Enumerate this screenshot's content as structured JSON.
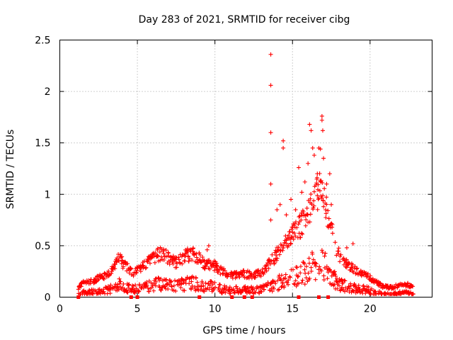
{
  "chart_data": {
    "type": "scatter",
    "title": "Day 283 of 2021, SRMTID for receiver cibg",
    "xlabel": "GPS time / hours",
    "ylabel": "SRMTID / TECUs",
    "xlim": [
      0,
      24
    ],
    "ylim": [
      0,
      2.5
    ],
    "xticks": [
      0,
      5,
      10,
      15,
      20
    ],
    "yticks": [
      0,
      0.5,
      1,
      1.5,
      2,
      2.5
    ],
    "xtick_labels": [
      "0",
      "5",
      "10",
      "15",
      "20"
    ],
    "ytick_labels": [
      "0",
      "0.5",
      "1",
      "1.5",
      "2",
      "2.5"
    ],
    "grid": true,
    "series": [
      {
        "name": "SRMTID",
        "marker": "plus",
        "color": "#ff0000",
        "baseline": [
          [
            1.2,
            0.06
          ],
          [
            1.5,
            0.09
          ],
          [
            2.0,
            0.1
          ],
          [
            2.5,
            0.12
          ],
          [
            3.0,
            0.14
          ],
          [
            3.5,
            0.18
          ],
          [
            3.8,
            0.25
          ],
          [
            4.2,
            0.2
          ],
          [
            4.7,
            0.16
          ],
          [
            5.2,
            0.18
          ],
          [
            5.6,
            0.22
          ],
          [
            6.0,
            0.25
          ],
          [
            6.5,
            0.28
          ],
          [
            7.0,
            0.25
          ],
          [
            7.5,
            0.22
          ],
          [
            8.0,
            0.26
          ],
          [
            8.5,
            0.28
          ],
          [
            9.0,
            0.25
          ],
          [
            9.4,
            0.2
          ],
          [
            9.8,
            0.22
          ],
          [
            10.2,
            0.18
          ],
          [
            10.7,
            0.15
          ],
          [
            11.2,
            0.14
          ],
          [
            11.8,
            0.15
          ],
          [
            12.4,
            0.14
          ],
          [
            12.9,
            0.15
          ],
          [
            13.4,
            0.2
          ],
          [
            13.8,
            0.25
          ],
          [
            14.2,
            0.3
          ],
          [
            14.6,
            0.35
          ],
          [
            15.0,
            0.4
          ],
          [
            15.5,
            0.45
          ],
          [
            16.0,
            0.55
          ],
          [
            16.5,
            0.65
          ],
          [
            16.9,
            0.7
          ],
          [
            17.3,
            0.5
          ],
          [
            17.7,
            0.35
          ],
          [
            18.1,
            0.25
          ],
          [
            18.6,
            0.2
          ],
          [
            19.2,
            0.17
          ],
          [
            19.8,
            0.15
          ],
          [
            20.3,
            0.1
          ],
          [
            20.8,
            0.07
          ],
          [
            21.4,
            0.06
          ],
          [
            22.0,
            0.08
          ],
          [
            22.5,
            0.08
          ],
          [
            22.8,
            0.06
          ]
        ],
        "highlights": [
          [
            13.6,
            2.36
          ],
          [
            13.6,
            2.06
          ],
          [
            13.6,
            1.6
          ],
          [
            13.6,
            1.1
          ],
          [
            13.6,
            0.75
          ],
          [
            14.0,
            0.85
          ],
          [
            14.2,
            0.9
          ],
          [
            14.4,
            1.52
          ],
          [
            14.4,
            1.45
          ],
          [
            14.6,
            0.8
          ],
          [
            14.9,
            0.95
          ],
          [
            15.2,
            0.85
          ],
          [
            15.4,
            1.26
          ],
          [
            15.6,
            1.02
          ],
          [
            15.8,
            1.12
          ],
          [
            16.0,
            1.3
          ],
          [
            16.1,
            1.68
          ],
          [
            16.2,
            1.62
          ],
          [
            16.3,
            1.45
          ],
          [
            16.4,
            1.38
          ],
          [
            16.6,
            1.2
          ],
          [
            16.7,
            1.45
          ],
          [
            16.8,
            1.44
          ],
          [
            16.9,
            1.76
          ],
          [
            16.9,
            1.72
          ],
          [
            16.95,
            1.62
          ],
          [
            17.0,
            1.35
          ],
          [
            17.2,
            1.1
          ],
          [
            17.4,
            1.2
          ],
          [
            17.5,
            0.9
          ],
          [
            18.9,
            0.52
          ],
          [
            18.5,
            0.48
          ],
          [
            9.6,
            0.5
          ],
          [
            9.5,
            0.46
          ],
          [
            8.1,
            0.4
          ],
          [
            3.7,
            0.35
          ]
        ],
        "gaps_at_zero_hours": [
          1.2,
          4.6,
          5.0,
          9.0,
          11.1,
          11.9,
          12.4,
          15.4,
          16.7,
          17.3
        ]
      }
    ]
  }
}
